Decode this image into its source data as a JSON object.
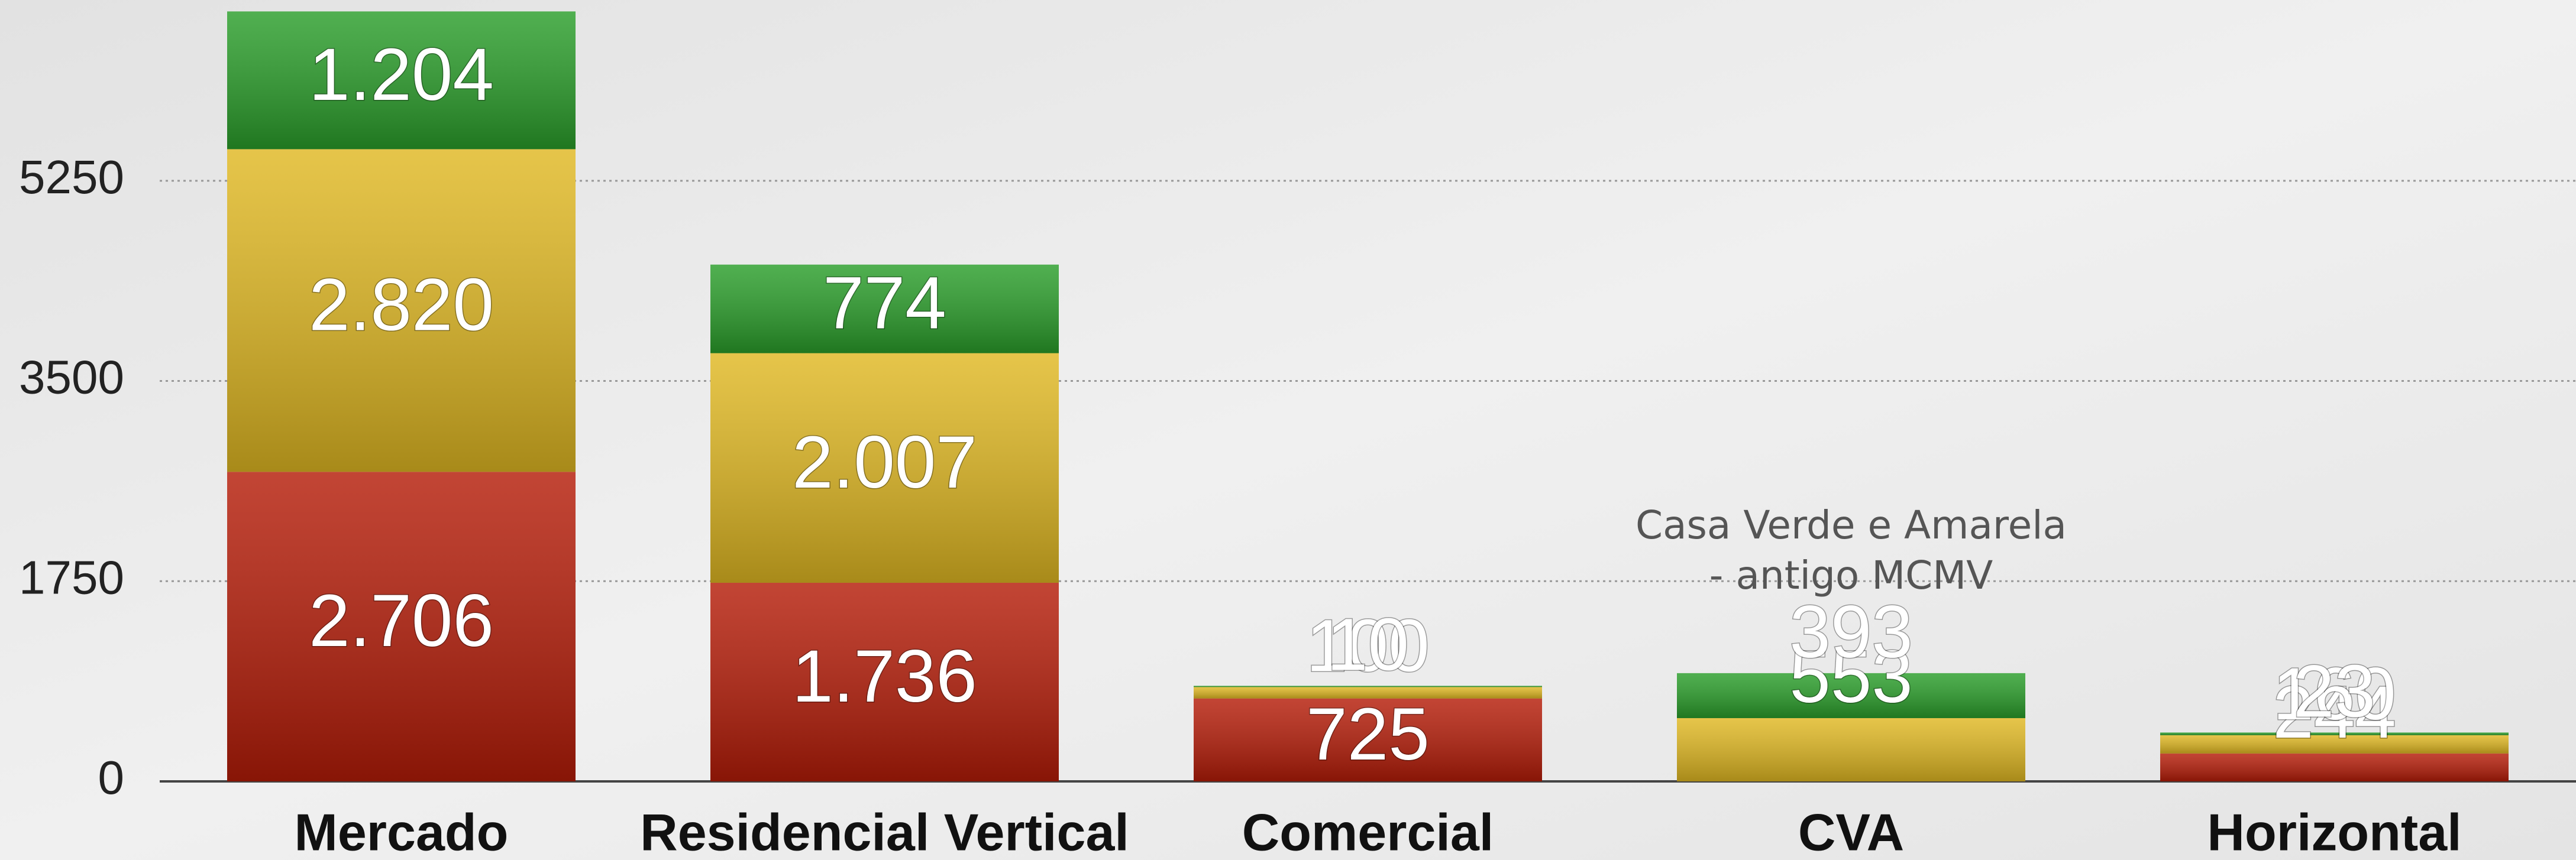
{
  "chart_data": {
    "type": "stacked-bar",
    "categories": [
      "Mercado",
      "Residencial Vertical",
      "Comercial",
      "CVA",
      "Horizontal"
    ],
    "series": [
      {
        "color": "#b51c08",
        "values": [
          2706,
          1736,
          725,
          0,
          244
        ],
        "value_labels": [
          "2.706",
          "1.736",
          "725",
          null,
          "244"
        ]
      },
      {
        "color": "#e0b822",
        "values": [
          2820,
          2007,
          100,
          553,
          160
        ],
        "value_labels": [
          "2.820",
          "2.007",
          "100",
          "553",
          "160"
        ]
      },
      {
        "color": "#2a9e2a",
        "values": [
          1204,
          774,
          10,
          393,
          23
        ],
        "value_labels": [
          "1.204",
          "774",
          "10",
          "393",
          "23"
        ]
      }
    ],
    "annotation": [
      "Casa Verde e Amarela",
      "- antigo MCMV"
    ],
    "ylim": [
      0,
      6830
    ],
    "yticks": [
      0,
      1750,
      3500,
      5250
    ],
    "grid": true
  }
}
